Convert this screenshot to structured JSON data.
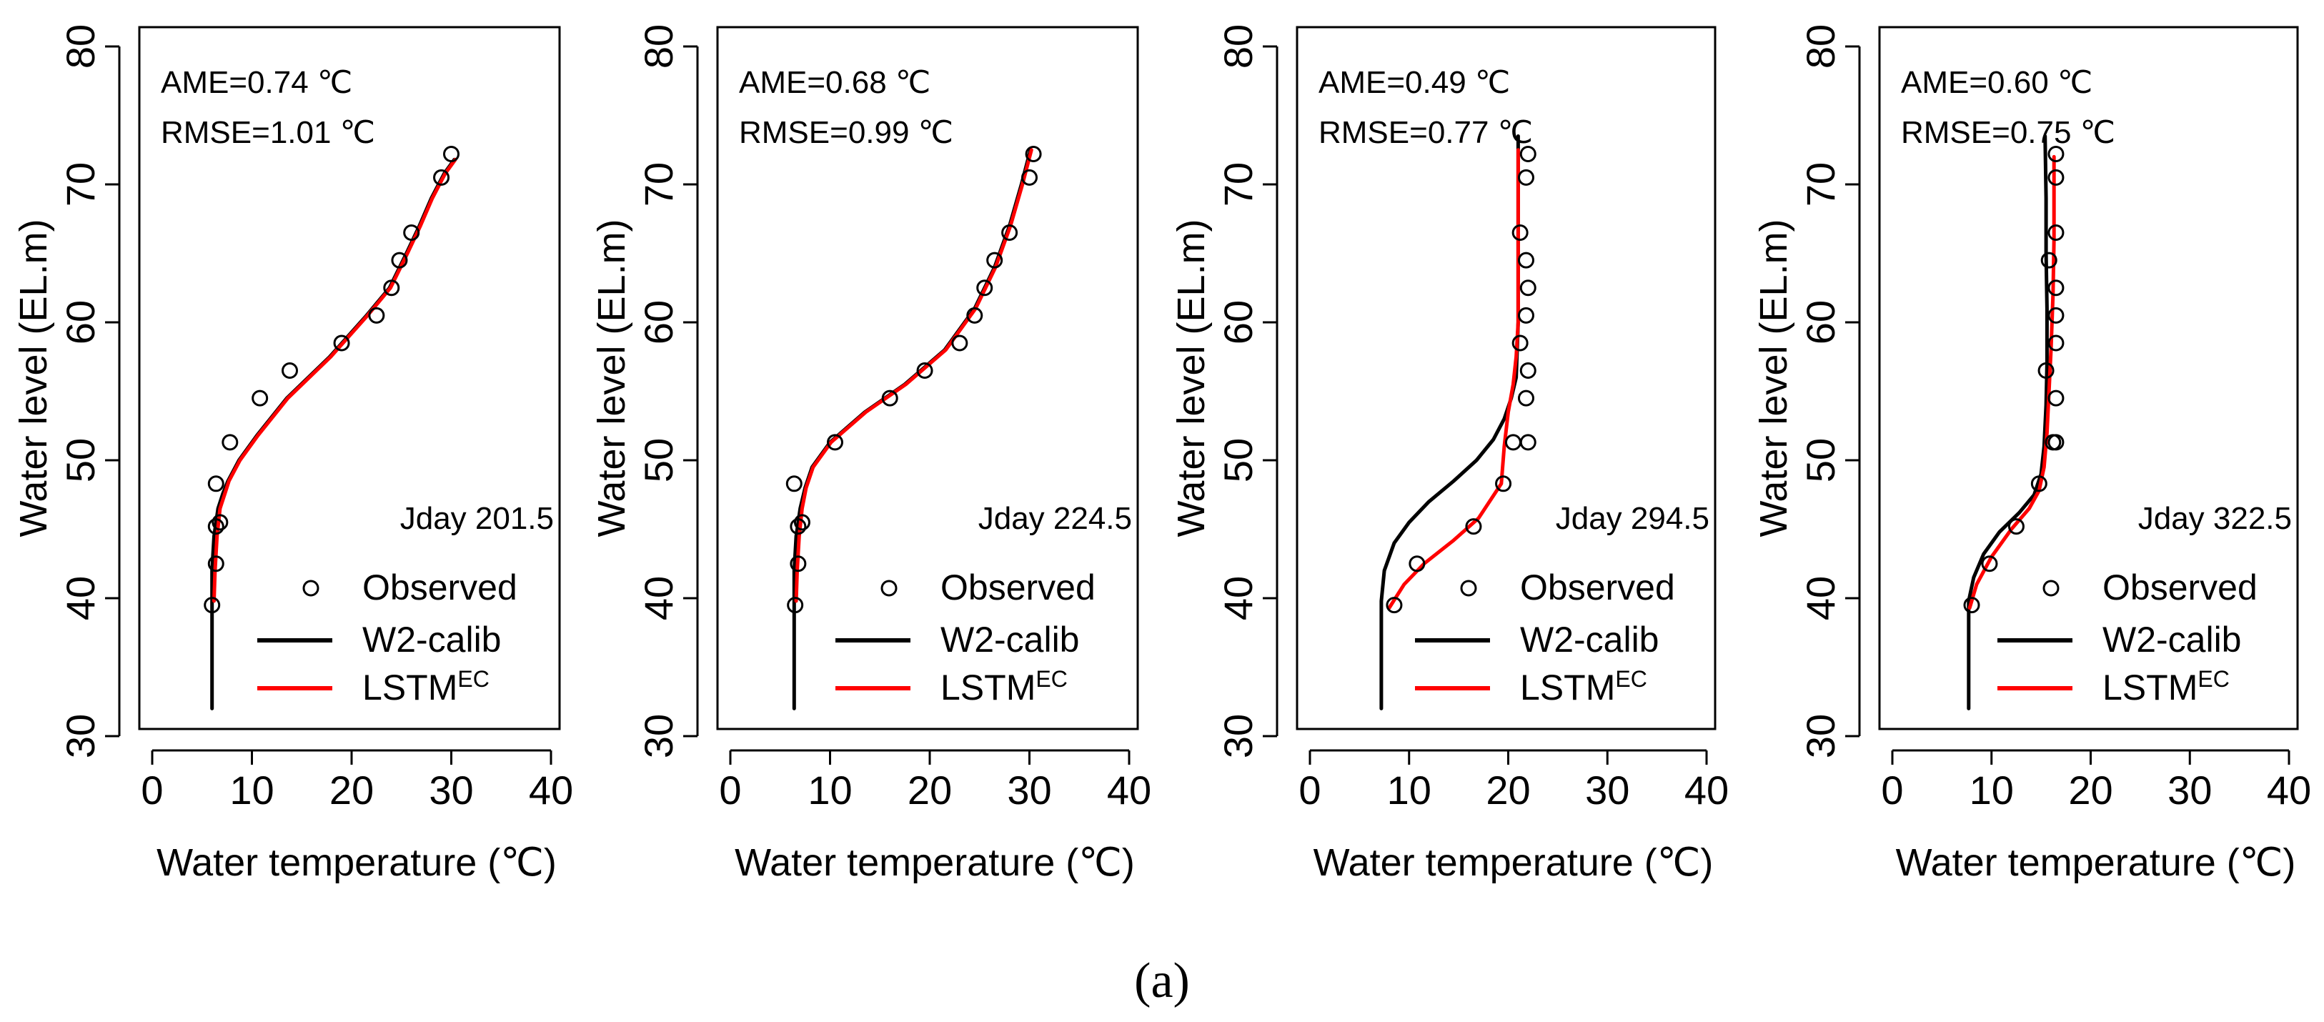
{
  "figure": {
    "caption_label": "(a)",
    "colors": {
      "observed": "#000000",
      "w2calib": "#000000",
      "lstm": "#ff0000",
      "axis": "#000000"
    }
  },
  "chart_data": [
    {
      "type": "line",
      "jday_label": "Jday 201.5",
      "stats": [
        "AME=0.74 ℃",
        "RMSE=1.01 ℃"
      ],
      "xlabel": "Water temperature (℃)",
      "ylabel": "Water level (EL.m)",
      "xlim": [
        0,
        40
      ],
      "ylim": [
        30,
        80
      ],
      "xticks": [
        0,
        10,
        20,
        30,
        40
      ],
      "yticks": [
        30,
        40,
        50,
        60,
        70,
        80
      ],
      "legend": {
        "placement": "bottom-right",
        "entries": [
          {
            "marker": "circle",
            "label": "Observed"
          },
          {
            "marker": "line-black",
            "label": "W2-calib"
          },
          {
            "marker": "line-red",
            "label": "LSTM",
            "superscript": "EC"
          }
        ]
      },
      "series": [
        {
          "name": "Observed",
          "kind": "points",
          "x": [
            6,
            6.4,
            6.4,
            6.8,
            6.4,
            7.8,
            10.8,
            13.8,
            19,
            22.5,
            24,
            24.8,
            26,
            29,
            30
          ],
          "y": [
            39.5,
            42.5,
            45.2,
            45.5,
            48.3,
            51.3,
            54.5,
            56.5,
            58.5,
            60.5,
            62.5,
            64.5,
            66.5,
            70.5,
            72.2
          ]
        },
        {
          "name": "W2-calib",
          "kind": "line",
          "x": [
            6,
            6,
            6.2,
            6.6,
            7.1,
            7.6,
            8.7,
            10.5,
            13.5,
            17.8,
            21.5,
            23.8,
            25.5,
            26.8,
            28,
            29.3,
            30.3
          ],
          "y": [
            32,
            42,
            44.5,
            46.5,
            47.6,
            48.5,
            50,
            51.8,
            54.5,
            57.5,
            60.5,
            62.5,
            65,
            67,
            69,
            70.8,
            71.8
          ]
        },
        {
          "name": "LSTM",
          "kind": "line",
          "x": [
            6.2,
            6.3,
            6.5,
            6.8,
            7.3,
            7.7,
            8.8,
            10.6,
            13.6,
            17.9,
            21.6,
            23.9,
            25.6,
            26.9,
            28.1,
            29.4,
            30.4
          ],
          "y": [
            39.8,
            42,
            44.5,
            46.5,
            47.6,
            48.5,
            50,
            51.8,
            54.5,
            57.5,
            60.5,
            62.5,
            65,
            67,
            69,
            70.8,
            71.8
          ]
        }
      ]
    },
    {
      "type": "line",
      "jday_label": "Jday 224.5",
      "stats": [
        "AME=0.68 ℃",
        "RMSE=0.99 ℃"
      ],
      "xlabel": "Water temperature (℃)",
      "ylabel": "Water level (EL.m)",
      "xlim": [
        0,
        40
      ],
      "ylim": [
        30,
        80
      ],
      "xticks": [
        0,
        10,
        20,
        30,
        40
      ],
      "yticks": [
        30,
        40,
        50,
        60,
        70,
        80
      ],
      "legend": {
        "placement": "bottom-right",
        "entries": [
          {
            "marker": "circle",
            "label": "Observed"
          },
          {
            "marker": "line-black",
            "label": "W2-calib"
          },
          {
            "marker": "line-red",
            "label": "LSTM",
            "superscript": "EC"
          }
        ]
      },
      "series": [
        {
          "name": "Observed",
          "kind": "points",
          "x": [
            6.5,
            6.8,
            6.8,
            7.2,
            6.4,
            10.5,
            16,
            19.5,
            23,
            24.5,
            25.5,
            26.5,
            28,
            30,
            30.4
          ],
          "y": [
            39.5,
            42.5,
            45.2,
            45.5,
            48.3,
            51.3,
            54.5,
            56.5,
            58.5,
            60.5,
            62.5,
            64.5,
            66.5,
            70.5,
            72.2
          ]
        },
        {
          "name": "W2-calib",
          "kind": "line",
          "x": [
            6.4,
            6.4,
            6.6,
            7,
            7.5,
            8.2,
            10,
            13.5,
            17.5,
            21.5,
            24.5,
            26.5,
            28,
            29.2,
            30.1
          ],
          "y": [
            32,
            42,
            44.5,
            46.5,
            48,
            49.5,
            51.3,
            53.5,
            55.5,
            58,
            61,
            64,
            67,
            70,
            72.5
          ]
        },
        {
          "name": "LSTM",
          "kind": "line",
          "x": [
            6.6,
            6.7,
            6.9,
            7.2,
            7.6,
            8.3,
            10.1,
            13.6,
            17.6,
            21.6,
            24.6,
            26.6,
            28.1,
            29.3,
            30.2
          ],
          "y": [
            39.8,
            42,
            44.5,
            46.5,
            48,
            49.5,
            51.3,
            53.5,
            55.5,
            58,
            61,
            64,
            67,
            70,
            72.5
          ]
        }
      ]
    },
    {
      "type": "line",
      "jday_label": "Jday 294.5",
      "stats": [
        "AME=0.49 ℃",
        "RMSE=0.77 ℃"
      ],
      "xlabel": "Water temperature (℃)",
      "ylabel": "Water level (EL.m)",
      "xlim": [
        0,
        40
      ],
      "ylim": [
        30,
        80
      ],
      "xticks": [
        0,
        10,
        20,
        30,
        40
      ],
      "yticks": [
        30,
        40,
        50,
        60,
        70,
        80
      ],
      "legend": {
        "placement": "bottom-right",
        "entries": [
          {
            "marker": "circle",
            "label": "Observed"
          },
          {
            "marker": "line-black",
            "label": "W2-calib"
          },
          {
            "marker": "line-red",
            "label": "LSTM",
            "superscript": "EC"
          }
        ]
      },
      "series": [
        {
          "name": "Observed",
          "kind": "points",
          "x": [
            8.5,
            10.8,
            16.5,
            19.5,
            20.5,
            21.8,
            22,
            21.2,
            21.8,
            22,
            21.8,
            21.2,
            21.8,
            22,
            22
          ],
          "y": [
            39.5,
            42.5,
            45.2,
            48.3,
            51.3,
            54.5,
            56.5,
            58.5,
            60.5,
            62.5,
            64.5,
            66.5,
            70.5,
            72.2,
            51.3
          ]
        },
        {
          "name": "W2-calib",
          "kind": "line",
          "x": [
            7.2,
            7.2,
            7.5,
            8.5,
            10,
            12,
            14.5,
            16.8,
            18.5,
            19.6,
            20.3,
            20.8,
            21,
            21,
            21
          ],
          "y": [
            32,
            39.8,
            42,
            44,
            45.5,
            47,
            48.5,
            50,
            51.5,
            53,
            54.5,
            56,
            60,
            66,
            73.5
          ]
        },
        {
          "name": "LSTM",
          "kind": "line",
          "x": [
            8,
            9.5,
            11.5,
            14.5,
            17,
            19.3,
            19.6,
            20,
            20.5,
            20.8,
            21,
            21,
            21
          ],
          "y": [
            39.3,
            41,
            42.5,
            44.2,
            45.8,
            48.3,
            51,
            53.5,
            55.5,
            57.5,
            60,
            66,
            72.5
          ]
        }
      ]
    },
    {
      "type": "line",
      "jday_label": "Jday 322.5",
      "stats": [
        "AME=0.60 ℃",
        "RMSE=0.75 ℃"
      ],
      "xlabel": "Water temperature (℃)",
      "ylabel": "Water level (EL.m)",
      "xlim": [
        0,
        40
      ],
      "ylim": [
        30,
        80
      ],
      "xticks": [
        0,
        10,
        20,
        30,
        40
      ],
      "yticks": [
        30,
        40,
        50,
        60,
        70,
        80
      ],
      "legend": {
        "placement": "bottom-right",
        "entries": [
          {
            "marker": "circle",
            "label": "Observed"
          },
          {
            "marker": "line-black",
            "label": "W2-calib"
          },
          {
            "marker": "line-red",
            "label": "LSTM",
            "superscript": "EC"
          }
        ]
      },
      "series": [
        {
          "name": "Observed",
          "kind": "points",
          "x": [
            8,
            9.8,
            12.5,
            14.8,
            15.5,
            16.2,
            16.5,
            16.5,
            16.5,
            16.5,
            15.8,
            16.5,
            16.5,
            16.5,
            16.5
          ],
          "y": [
            39.5,
            42.5,
            45.2,
            48.3,
            56.5,
            51.3,
            54.5,
            58.5,
            60.5,
            62.5,
            64.5,
            66.5,
            70.5,
            72.2,
            51.3
          ]
        },
        {
          "name": "W2-calib",
          "kind": "line",
          "x": [
            7.7,
            7.7,
            8.2,
            9.2,
            10.8,
            12.8,
            14.3,
            15,
            15.3,
            15.5,
            15.6,
            15.6,
            15.5,
            15.5,
            15.4
          ],
          "y": [
            32,
            39.8,
            41.5,
            43.2,
            44.8,
            46.2,
            47.5,
            49,
            51,
            54,
            57,
            61,
            65,
            69,
            73.5
          ]
        },
        {
          "name": "LSTM",
          "kind": "line",
          "x": [
            7.8,
            8.5,
            10,
            12,
            13.8,
            14.8,
            15.3,
            15.6,
            15.8,
            16,
            16.2,
            16.3,
            16.3,
            16.3
          ],
          "y": [
            39.3,
            41,
            43,
            45,
            46.5,
            47.8,
            49.5,
            52,
            55,
            58,
            62,
            66,
            69,
            72
          ]
        }
      ]
    }
  ]
}
